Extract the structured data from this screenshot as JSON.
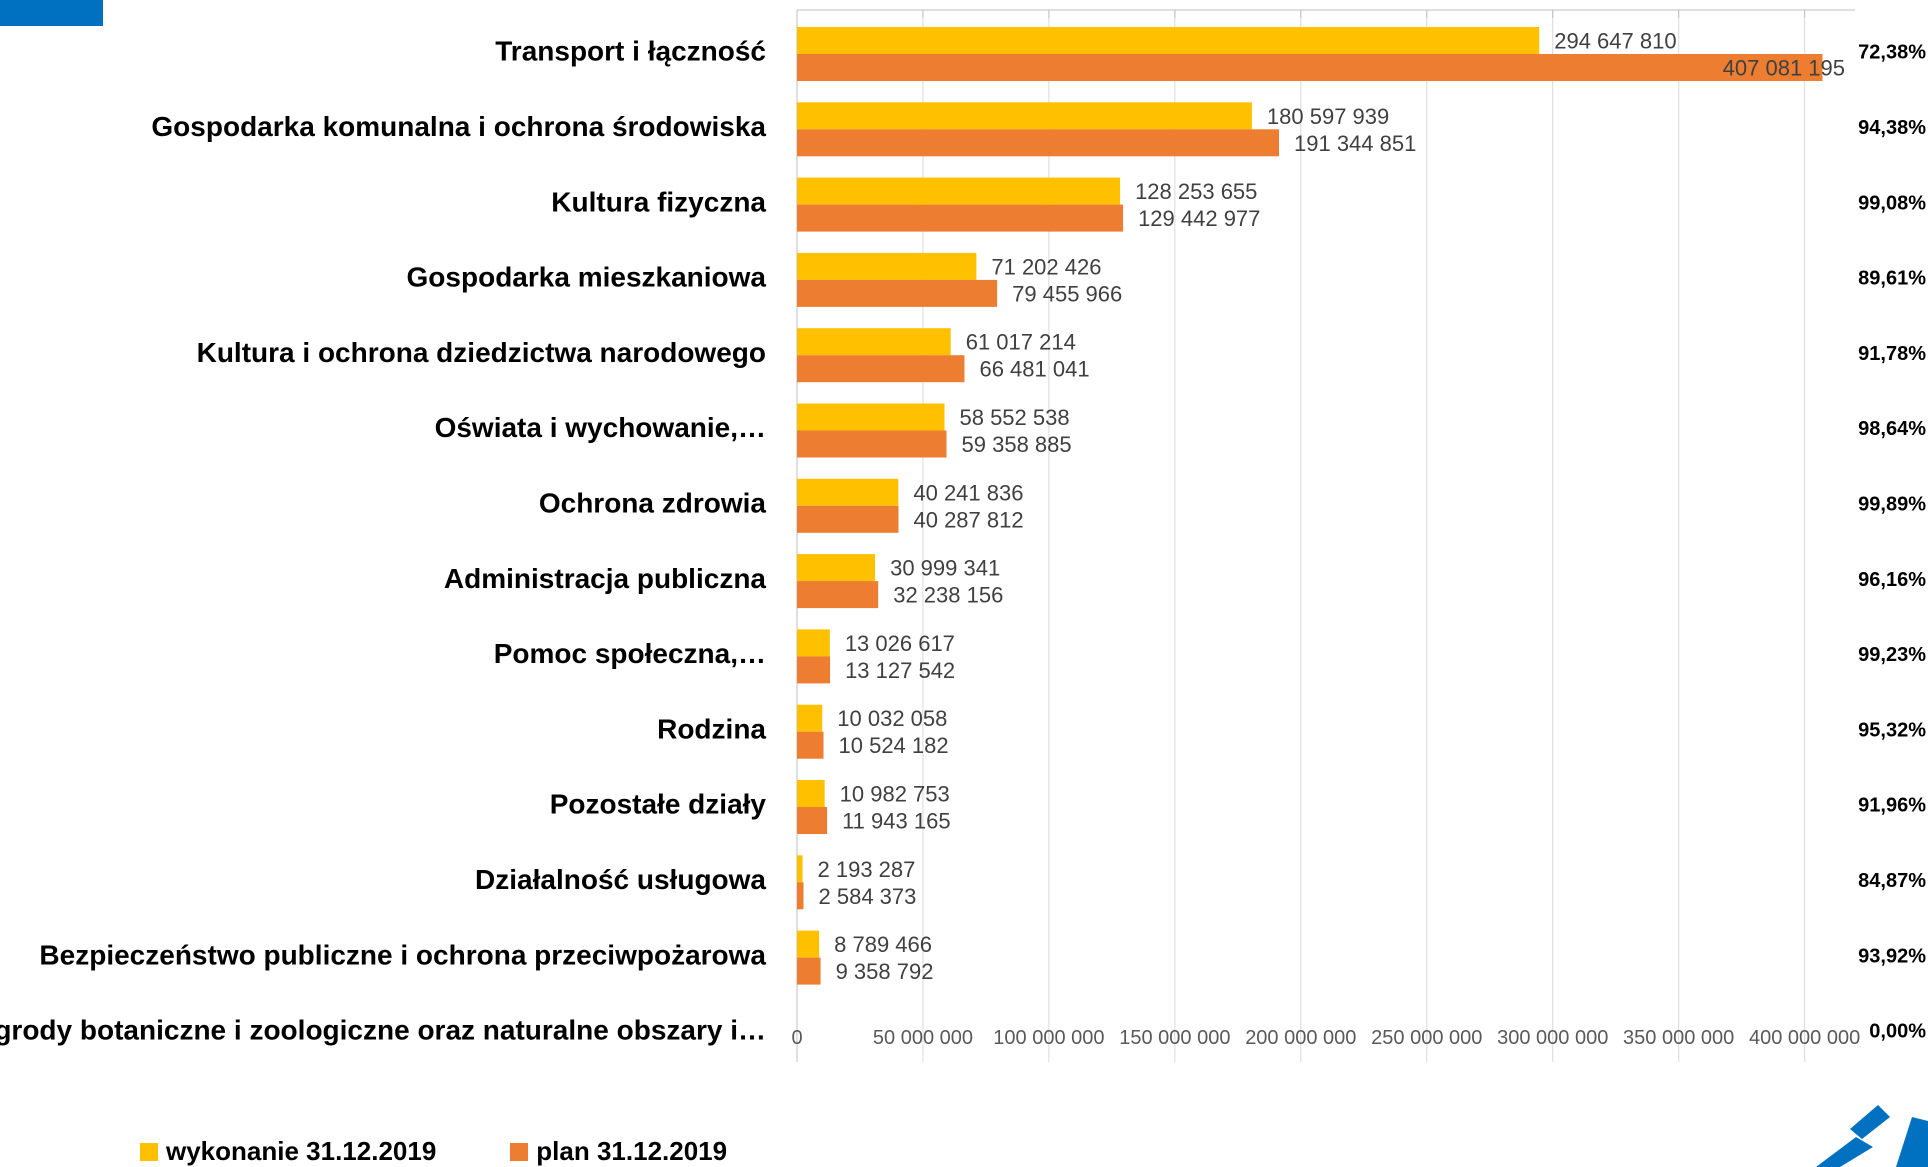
{
  "colors": {
    "wykonanie": "#ffc000",
    "plan": "#ed7d31",
    "grid": "#d9d9d9",
    "axis": "#bfbfbf",
    "brand": "#0070c0"
  },
  "chart_data": {
    "type": "bar",
    "orientation": "horizontal",
    "xlim": [
      0,
      420000000
    ],
    "x_ticks": [
      {
        "value": 0,
        "label": "0"
      },
      {
        "value": 50000000,
        "label": "50 000 000"
      },
      {
        "value": 100000000,
        "label": "100 000 000"
      },
      {
        "value": 150000000,
        "label": "150 000 000"
      },
      {
        "value": 200000000,
        "label": "200 000 000"
      },
      {
        "value": 250000000,
        "label": "250 000 000"
      },
      {
        "value": 300000000,
        "label": "300 000 000"
      },
      {
        "value": 350000000,
        "label": "350 000 000"
      },
      {
        "value": 400000000,
        "label": "400 000 000"
      }
    ],
    "categories": [
      "Transport i łączność",
      "Gospodarka komunalna i ochrona środowiska",
      "Kultura fizyczna",
      "Gospodarka mieszkaniowa",
      "Kultura i ochrona dziedzictwa narodowego",
      "Oświata i wychowanie,…",
      "Ochrona zdrowia",
      "Administracja publiczna",
      "Pomoc społeczna,…",
      "Rodzina",
      "Pozostałe działy",
      "Działalność usługowa",
      "Bezpieczeństwo publiczne i ochrona przeciwpożarowa",
      "Ogrody botaniczne i zoologiczne oraz naturalne obszary i…"
    ],
    "series": [
      {
        "name": "wykonanie 31.12.2019",
        "values": [
          294647810,
          180597939,
          128253655,
          71202426,
          61017214,
          58552538,
          40241836,
          30999341,
          13026617,
          10032058,
          10982753,
          2193287,
          8789466,
          0
        ],
        "labels": [
          "294 647 810",
          "180 597 939",
          "128 253 655",
          "71 202 426",
          "61 017 214",
          "58 552 538",
          "40 241 836",
          "30 999 341",
          "13 026 617",
          "10 032 058",
          "10 982 753",
          "2 193 287",
          "8 789 466",
          ""
        ]
      },
      {
        "name": "plan 31.12.2019",
        "values": [
          407081195,
          191344851,
          129442977,
          79455966,
          66481041,
          59358885,
          40287812,
          32238156,
          13127542,
          10524182,
          11943165,
          2584373,
          9358792,
          0
        ],
        "labels": [
          "407 081 195",
          "191 344 851",
          "129 442 977",
          "79 455 966",
          "66 481 041",
          "59 358 885",
          "40 287 812",
          "32 238 156",
          "13 127 542",
          "10 524 182",
          "11 943 165",
          "2 584 373",
          "9 358 792",
          ""
        ]
      }
    ],
    "percentages": [
      "72,38%",
      "94,38%",
      "99,08%",
      "89,61%",
      "91,78%",
      "98,64%",
      "99,89%",
      "96,16%",
      "99,23%",
      "95,32%",
      "91,96%",
      "84,87%",
      "93,92%",
      "0,00%"
    ],
    "legend_position": "bottom-left",
    "grid": true
  }
}
